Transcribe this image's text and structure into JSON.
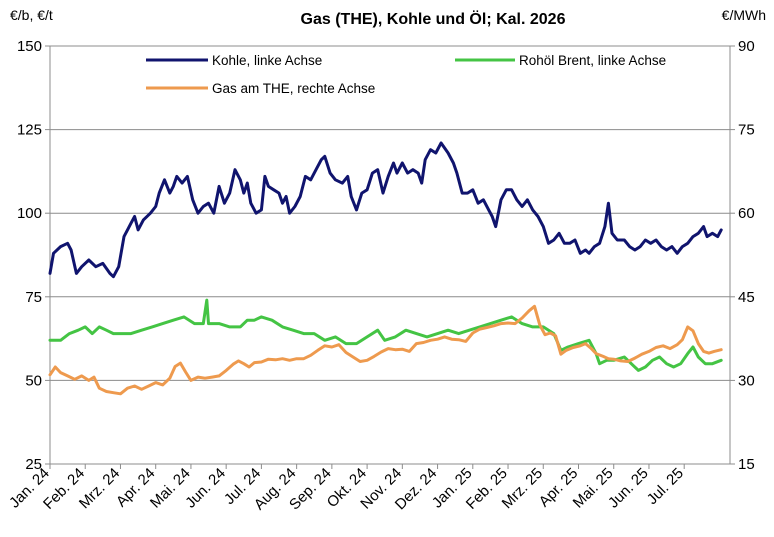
{
  "chart_data": {
    "type": "line",
    "title": "Gas (THE), Kohle und Öl; Kal. 2026",
    "ylabel_left": "€/b, €/t",
    "ylabel_right": "€/MWh",
    "ylim_left": [
      25,
      150
    ],
    "yticks_left": [
      "25",
      "50",
      "75",
      "100",
      "125",
      "150"
    ],
    "ylim_right": [
      15,
      90
    ],
    "yticks_right": [
      "15",
      "30",
      "45",
      "60",
      "75",
      "90"
    ],
    "grid": "horizontal",
    "legend_position": "top",
    "x_ticks": [
      "Jan. 24",
      "Feb. 24",
      "Mrz. 24",
      "Apr. 24",
      "Mai. 24",
      "Jun. 24",
      "Jul. 24",
      "Aug. 24",
      "Sep. 24",
      "Okt. 24",
      "Nov. 24",
      "Dez. 24",
      "Jan. 25",
      "Feb. 25",
      "Mrz. 25",
      "Apr. 25",
      "Mai. 25",
      "Jun. 25",
      "Jul. 25"
    ],
    "x_range": [
      0,
      19.3
    ],
    "series": [
      {
        "name": "Kohle, linke Achse",
        "axis": "left",
        "color": "#10146e",
        "points": [
          [
            0.0,
            82
          ],
          [
            0.1,
            88
          ],
          [
            0.3,
            90
          ],
          [
            0.5,
            91
          ],
          [
            0.6,
            89
          ],
          [
            0.75,
            82
          ],
          [
            0.9,
            84
          ],
          [
            1.1,
            86
          ],
          [
            1.3,
            84
          ],
          [
            1.5,
            85
          ],
          [
            1.7,
            82
          ],
          [
            1.8,
            81
          ],
          [
            1.95,
            84
          ],
          [
            2.1,
            93
          ],
          [
            2.3,
            97
          ],
          [
            2.4,
            99
          ],
          [
            2.5,
            95
          ],
          [
            2.65,
            98
          ],
          [
            2.85,
            100
          ],
          [
            3.0,
            102
          ],
          [
            3.1,
            106
          ],
          [
            3.25,
            110
          ],
          [
            3.4,
            106
          ],
          [
            3.5,
            108
          ],
          [
            3.6,
            111
          ],
          [
            3.75,
            109
          ],
          [
            3.9,
            111
          ],
          [
            4.05,
            104
          ],
          [
            4.2,
            100
          ],
          [
            4.35,
            102
          ],
          [
            4.5,
            103
          ],
          [
            4.65,
            100
          ],
          [
            4.8,
            108
          ],
          [
            4.95,
            103
          ],
          [
            5.1,
            106
          ],
          [
            5.25,
            113
          ],
          [
            5.4,
            110
          ],
          [
            5.5,
            106
          ],
          [
            5.6,
            109
          ],
          [
            5.7,
            103
          ],
          [
            5.85,
            100
          ],
          [
            6.0,
            101
          ],
          [
            6.1,
            111
          ],
          [
            6.2,
            108
          ],
          [
            6.35,
            107
          ],
          [
            6.5,
            106
          ],
          [
            6.6,
            103
          ],
          [
            6.7,
            105
          ],
          [
            6.8,
            100
          ],
          [
            6.95,
            102
          ],
          [
            7.1,
            105
          ],
          [
            7.25,
            111
          ],
          [
            7.4,
            110
          ],
          [
            7.55,
            113
          ],
          [
            7.7,
            116
          ],
          [
            7.8,
            117
          ],
          [
            7.95,
            112
          ],
          [
            8.1,
            110
          ],
          [
            8.3,
            109
          ],
          [
            8.45,
            111
          ],
          [
            8.55,
            105
          ],
          [
            8.7,
            101
          ],
          [
            8.85,
            106
          ],
          [
            9.0,
            107
          ],
          [
            9.15,
            112
          ],
          [
            9.3,
            113
          ],
          [
            9.45,
            106
          ],
          [
            9.6,
            111
          ],
          [
            9.75,
            115
          ],
          [
            9.85,
            112
          ],
          [
            10.0,
            115
          ],
          [
            10.15,
            112
          ],
          [
            10.3,
            113
          ],
          [
            10.45,
            112
          ],
          [
            10.55,
            109
          ],
          [
            10.65,
            116
          ],
          [
            10.8,
            119
          ],
          [
            10.95,
            118
          ],
          [
            11.1,
            121
          ],
          [
            11.3,
            118
          ],
          [
            11.45,
            115
          ],
          [
            11.55,
            112
          ],
          [
            11.7,
            106
          ],
          [
            11.85,
            106
          ],
          [
            12.0,
            107
          ],
          [
            12.15,
            103
          ],
          [
            12.3,
            104
          ],
          [
            12.45,
            101
          ],
          [
            12.55,
            99
          ],
          [
            12.65,
            96
          ],
          [
            12.8,
            104
          ],
          [
            12.95,
            107
          ],
          [
            13.1,
            107
          ],
          [
            13.25,
            104
          ],
          [
            13.4,
            102
          ],
          [
            13.55,
            104
          ],
          [
            13.7,
            101
          ],
          [
            13.85,
            99
          ],
          [
            14.0,
            96
          ],
          [
            14.15,
            91
          ],
          [
            14.3,
            92
          ],
          [
            14.45,
            94
          ],
          [
            14.6,
            91
          ],
          [
            14.75,
            91
          ],
          [
            14.9,
            92
          ],
          [
            15.05,
            88
          ],
          [
            15.2,
            89
          ],
          [
            15.3,
            88
          ],
          [
            15.45,
            90
          ],
          [
            15.6,
            91
          ],
          [
            15.75,
            96
          ],
          [
            15.85,
            103
          ],
          [
            15.95,
            94
          ],
          [
            16.1,
            92
          ],
          [
            16.3,
            92
          ],
          [
            16.45,
            90
          ],
          [
            16.6,
            89
          ],
          [
            16.75,
            90
          ],
          [
            16.9,
            92
          ],
          [
            17.05,
            91
          ],
          [
            17.2,
            92
          ],
          [
            17.35,
            90
          ],
          [
            17.5,
            89
          ],
          [
            17.65,
            90
          ],
          [
            17.8,
            88
          ],
          [
            17.95,
            90
          ],
          [
            18.1,
            91
          ],
          [
            18.25,
            93
          ],
          [
            18.4,
            94
          ],
          [
            18.55,
            96
          ],
          [
            18.65,
            93
          ],
          [
            18.8,
            94
          ],
          [
            18.95,
            93
          ],
          [
            19.05,
            95
          ]
        ]
      },
      {
        "name": "Rohöl Brent, linke Achse",
        "axis": "left",
        "color": "#44c444",
        "points": [
          [
            0.0,
            62
          ],
          [
            0.3,
            62
          ],
          [
            0.55,
            64
          ],
          [
            0.8,
            65
          ],
          [
            1.0,
            66
          ],
          [
            1.2,
            64
          ],
          [
            1.4,
            66
          ],
          [
            1.6,
            65
          ],
          [
            1.8,
            64
          ],
          [
            2.0,
            64
          ],
          [
            2.3,
            64
          ],
          [
            2.6,
            65
          ],
          [
            2.9,
            66
          ],
          [
            3.2,
            67
          ],
          [
            3.5,
            68
          ],
          [
            3.8,
            69
          ],
          [
            4.1,
            67
          ],
          [
            4.35,
            67
          ],
          [
            4.45,
            74
          ],
          [
            4.5,
            67
          ],
          [
            4.8,
            67
          ],
          [
            5.1,
            66
          ],
          [
            5.4,
            66
          ],
          [
            5.6,
            68
          ],
          [
            5.8,
            68
          ],
          [
            6.0,
            69
          ],
          [
            6.3,
            68
          ],
          [
            6.6,
            66
          ],
          [
            6.9,
            65
          ],
          [
            7.2,
            64
          ],
          [
            7.5,
            64
          ],
          [
            7.8,
            62
          ],
          [
            8.1,
            63
          ],
          [
            8.4,
            61
          ],
          [
            8.7,
            61
          ],
          [
            9.0,
            63
          ],
          [
            9.3,
            65
          ],
          [
            9.5,
            62
          ],
          [
            9.8,
            63
          ],
          [
            10.1,
            65
          ],
          [
            10.4,
            64
          ],
          [
            10.7,
            63
          ],
          [
            11.0,
            64
          ],
          [
            11.3,
            65
          ],
          [
            11.6,
            64
          ],
          [
            11.9,
            65
          ],
          [
            12.2,
            66
          ],
          [
            12.5,
            67
          ],
          [
            12.8,
            68
          ],
          [
            13.1,
            69
          ],
          [
            13.4,
            67
          ],
          [
            13.7,
            66
          ],
          [
            14.0,
            66
          ],
          [
            14.3,
            64
          ],
          [
            14.5,
            59
          ],
          [
            14.7,
            60
          ],
          [
            15.0,
            61
          ],
          [
            15.3,
            62
          ],
          [
            15.5,
            58
          ],
          [
            15.6,
            55
          ],
          [
            15.8,
            56
          ],
          [
            16.0,
            56
          ],
          [
            16.3,
            57
          ],
          [
            16.5,
            55
          ],
          [
            16.7,
            53
          ],
          [
            16.9,
            54
          ],
          [
            17.1,
            56
          ],
          [
            17.3,
            57
          ],
          [
            17.5,
            55
          ],
          [
            17.7,
            54
          ],
          [
            17.9,
            55
          ],
          [
            18.1,
            58
          ],
          [
            18.25,
            60
          ],
          [
            18.4,
            57
          ],
          [
            18.6,
            55
          ],
          [
            18.8,
            55
          ],
          [
            19.05,
            56
          ]
        ]
      },
      {
        "name": "Gas am THE, rechte Achse",
        "axis": "right",
        "color": "#ee9a4e",
        "points": [
          [
            0.0,
            31.0
          ],
          [
            0.15,
            32.4
          ],
          [
            0.3,
            31.4
          ],
          [
            0.5,
            30.8
          ],
          [
            0.7,
            30.2
          ],
          [
            0.9,
            30.8
          ],
          [
            1.1,
            30.0
          ],
          [
            1.25,
            30.6
          ],
          [
            1.4,
            28.6
          ],
          [
            1.6,
            28.0
          ],
          [
            1.8,
            27.8
          ],
          [
            2.0,
            27.6
          ],
          [
            2.2,
            28.6
          ],
          [
            2.4,
            29.0
          ],
          [
            2.6,
            28.4
          ],
          [
            2.8,
            29.0
          ],
          [
            3.0,
            29.6
          ],
          [
            3.2,
            29.2
          ],
          [
            3.4,
            30.4
          ],
          [
            3.55,
            32.5
          ],
          [
            3.7,
            33.1
          ],
          [
            3.85,
            31.5
          ],
          [
            4.0,
            30.0
          ],
          [
            4.2,
            30.6
          ],
          [
            4.4,
            30.4
          ],
          [
            4.6,
            30.6
          ],
          [
            4.8,
            30.8
          ],
          [
            5.0,
            31.8
          ],
          [
            5.2,
            32.9
          ],
          [
            5.35,
            33.5
          ],
          [
            5.5,
            33.0
          ],
          [
            5.65,
            32.4
          ],
          [
            5.8,
            33.2
          ],
          [
            6.0,
            33.3
          ],
          [
            6.2,
            33.8
          ],
          [
            6.4,
            33.7
          ],
          [
            6.6,
            33.9
          ],
          [
            6.8,
            33.6
          ],
          [
            7.0,
            33.9
          ],
          [
            7.2,
            33.9
          ],
          [
            7.4,
            34.5
          ],
          [
            7.6,
            35.4
          ],
          [
            7.8,
            36.2
          ],
          [
            8.0,
            36.0
          ],
          [
            8.2,
            36.4
          ],
          [
            8.4,
            35.0
          ],
          [
            8.6,
            34.2
          ],
          [
            8.8,
            33.4
          ],
          [
            9.0,
            33.6
          ],
          [
            9.2,
            34.3
          ],
          [
            9.4,
            35.1
          ],
          [
            9.6,
            35.7
          ],
          [
            9.8,
            35.5
          ],
          [
            10.0,
            35.6
          ],
          [
            10.2,
            35.2
          ],
          [
            10.4,
            36.6
          ],
          [
            10.6,
            36.8
          ],
          [
            10.8,
            37.2
          ],
          [
            11.0,
            37.4
          ],
          [
            11.2,
            37.8
          ],
          [
            11.4,
            37.4
          ],
          [
            11.6,
            37.3
          ],
          [
            11.8,
            37.0
          ],
          [
            12.0,
            38.5
          ],
          [
            12.2,
            39.2
          ],
          [
            12.4,
            39.5
          ],
          [
            12.6,
            39.8
          ],
          [
            12.8,
            40.2
          ],
          [
            13.0,
            40.3
          ],
          [
            13.2,
            40.2
          ],
          [
            13.4,
            41.2
          ],
          [
            13.6,
            42.5
          ],
          [
            13.75,
            43.3
          ],
          [
            13.9,
            40.0
          ],
          [
            14.05,
            38.2
          ],
          [
            14.2,
            38.5
          ],
          [
            14.35,
            38.0
          ],
          [
            14.5,
            34.7
          ],
          [
            14.65,
            35.4
          ],
          [
            14.85,
            35.9
          ],
          [
            15.05,
            36.2
          ],
          [
            15.2,
            36.6
          ],
          [
            15.35,
            35.8
          ],
          [
            15.5,
            34.8
          ],
          [
            15.7,
            34.3
          ],
          [
            15.85,
            33.9
          ],
          [
            16.0,
            33.8
          ],
          [
            16.2,
            33.5
          ],
          [
            16.4,
            33.4
          ],
          [
            16.6,
            34.0
          ],
          [
            16.8,
            34.7
          ],
          [
            17.0,
            35.2
          ],
          [
            17.2,
            35.9
          ],
          [
            17.4,
            36.2
          ],
          [
            17.6,
            35.7
          ],
          [
            17.8,
            36.4
          ],
          [
            17.95,
            37.3
          ],
          [
            18.1,
            39.6
          ],
          [
            18.25,
            38.9
          ],
          [
            18.4,
            36.6
          ],
          [
            18.55,
            35.2
          ],
          [
            18.7,
            34.9
          ],
          [
            18.85,
            35.2
          ],
          [
            19.05,
            35.5
          ]
        ]
      }
    ]
  }
}
